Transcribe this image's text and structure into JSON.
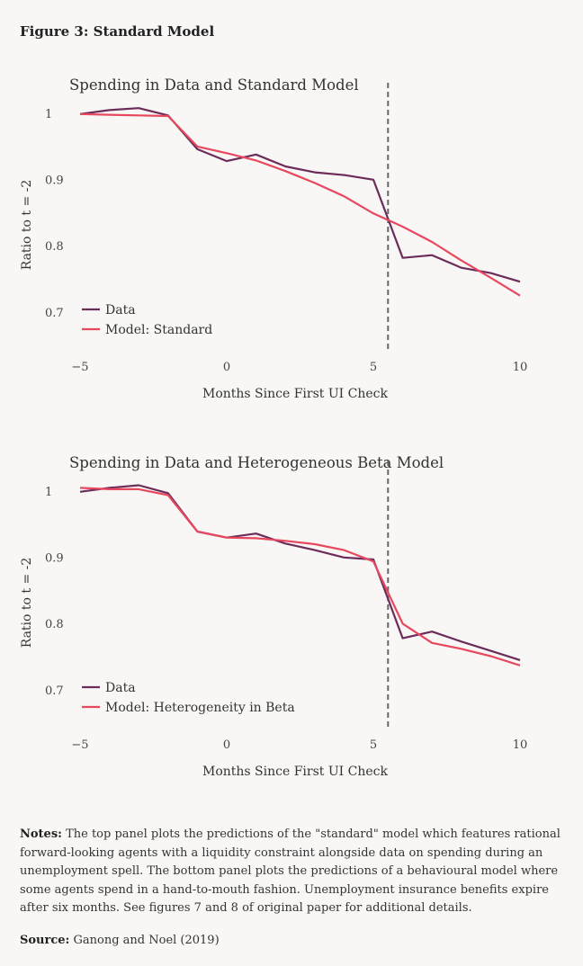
{
  "figure_title": "Figure 3: Standard Model",
  "notes_label": "Notes:",
  "notes_text": "The top panel plots the predictions of the \"standard\" model which features rational forward-looking agents with a liquidity constraint alongside data on spending during an unemployment spell. The bottom panel plots the predictions of a behavioural model where some agents spend in a hand-to-mouth fashion. Unemployment insurance benefits expire after six months. See figures 7 and 8 of original paper for additional details.",
  "source_label": "Source:",
  "source_text": "Ganong and Noel (2019)",
  "colors": {
    "data": "#6b2c5a",
    "model": "#e8485e",
    "vline": "#666666",
    "axis_text": "#444444"
  },
  "chart_data": [
    {
      "type": "line",
      "title": "Spending in Data and Standard Model",
      "xlabel": "Months Since First UI Check",
      "ylabel": "Ratio to t = -2",
      "xlim": [
        -5,
        10
      ],
      "ylim": [
        0.64,
        1.05
      ],
      "xticks": [
        -5,
        0,
        5,
        10
      ],
      "yticks": [
        0.7,
        0.8,
        0.9,
        1
      ],
      "ytick_labels": [
        "0.7",
        "0.8",
        "0.9",
        "1"
      ],
      "vline_x": 5.5,
      "grid": false,
      "legend_position": "bottom-left",
      "series": [
        {
          "name": "Data",
          "color": "#6b2c5a",
          "points": [
            [
              -5,
              1.0
            ],
            [
              -4,
              1.006
            ],
            [
              -3,
              1.009
            ],
            [
              -2,
              0.998
            ],
            [
              -1,
              0.947
            ],
            [
              0,
              0.929
            ],
            [
              1,
              0.939
            ],
            [
              2,
              0.921
            ],
            [
              3,
              0.912
            ],
            [
              4,
              0.908
            ],
            [
              5,
              0.901
            ],
            [
              6,
              0.783
            ],
            [
              7,
              0.787
            ],
            [
              8,
              0.768
            ],
            [
              9,
              0.76
            ],
            [
              10,
              0.747
            ]
          ]
        },
        {
          "name": "Model: Standard",
          "color": "#e8485e",
          "points": [
            [
              -5,
              1.0
            ],
            [
              -4,
              0.999
            ],
            [
              -3,
              0.998
            ],
            [
              -2,
              0.997
            ],
            [
              -1,
              0.951
            ],
            [
              0,
              0.941
            ],
            [
              1,
              0.93
            ],
            [
              2,
              0.914
            ],
            [
              3,
              0.896
            ],
            [
              4,
              0.876
            ],
            [
              5,
              0.85
            ],
            [
              6,
              0.83
            ],
            [
              7,
              0.807
            ],
            [
              8,
              0.779
            ],
            [
              9,
              0.753
            ],
            [
              10,
              0.726
            ]
          ]
        }
      ]
    },
    {
      "type": "line",
      "title": "Spending in Data and Heterogeneous Beta Model",
      "xlabel": "Months Since First UI Check",
      "ylabel": "Ratio to t = -2",
      "xlim": [
        -5,
        10
      ],
      "ylim": [
        0.64,
        1.05
      ],
      "xticks": [
        -5,
        0,
        5,
        10
      ],
      "yticks": [
        0.7,
        0.8,
        0.9,
        1
      ],
      "ytick_labels": [
        "0.7",
        "0.8",
        "0.9",
        "1"
      ],
      "vline_x": 5.5,
      "grid": false,
      "legend_position": "bottom-left",
      "series": [
        {
          "name": "Data",
          "color": "#6b2c5a",
          "points": [
            [
              -5,
              1.0
            ],
            [
              -4,
              1.006
            ],
            [
              -3,
              1.01
            ],
            [
              -2,
              0.998
            ],
            [
              -1,
              0.94
            ],
            [
              0,
              0.931
            ],
            [
              1,
              0.937
            ],
            [
              2,
              0.922
            ],
            [
              3,
              0.912
            ],
            [
              4,
              0.901
            ],
            [
              5,
              0.898
            ],
            [
              6,
              0.779
            ],
            [
              7,
              0.789
            ],
            [
              8,
              0.774
            ],
            [
              9,
              0.76
            ],
            [
              10,
              0.746
            ]
          ]
        },
        {
          "name": "Model: Heterogeneity in Beta",
          "color": "#e8485e",
          "points": [
            [
              -5,
              1.006
            ],
            [
              -4,
              1.004
            ],
            [
              -3,
              1.004
            ],
            [
              -2,
              0.995
            ],
            [
              -1,
              0.94
            ],
            [
              0,
              0.931
            ],
            [
              1,
              0.93
            ],
            [
              2,
              0.926
            ],
            [
              3,
              0.921
            ],
            [
              4,
              0.912
            ],
            [
              5,
              0.895
            ],
            [
              6,
              0.801
            ],
            [
              7,
              0.772
            ],
            [
              8,
              0.763
            ],
            [
              9,
              0.752
            ],
            [
              10,
              0.738
            ]
          ]
        }
      ]
    }
  ]
}
